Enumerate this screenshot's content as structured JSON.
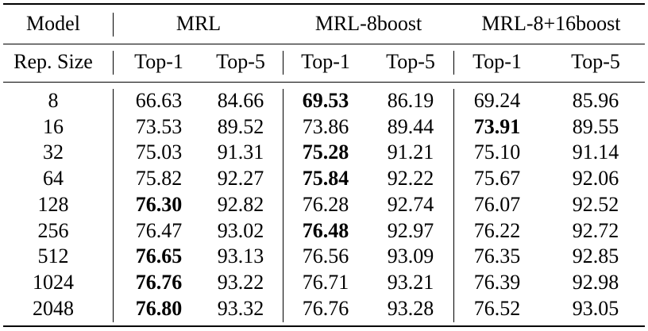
{
  "table": {
    "header": {
      "model_label": "Model",
      "groups": [
        "MRL",
        "MRL-8boost",
        "MRL-8+16boost"
      ],
      "rep_label": "Rep. Size",
      "subcols": [
        "Top-1",
        "Top-5",
        "Top-1",
        "Top-5",
        "Top-1",
        "Top-5"
      ]
    },
    "rows": [
      {
        "size": "8",
        "values": [
          "66.63",
          "84.66",
          "69.53",
          "86.19",
          "69.24",
          "85.96"
        ],
        "bold": [
          false,
          false,
          true,
          false,
          false,
          false
        ]
      },
      {
        "size": "16",
        "values": [
          "73.53",
          "89.52",
          "73.86",
          "89.44",
          "73.91",
          "89.55"
        ],
        "bold": [
          false,
          false,
          false,
          false,
          true,
          false
        ]
      },
      {
        "size": "32",
        "values": [
          "75.03",
          "91.31",
          "75.28",
          "91.21",
          "75.10",
          "91.14"
        ],
        "bold": [
          false,
          false,
          true,
          false,
          false,
          false
        ]
      },
      {
        "size": "64",
        "values": [
          "75.82",
          "92.27",
          "75.84",
          "92.22",
          "75.67",
          "92.06"
        ],
        "bold": [
          false,
          false,
          true,
          false,
          false,
          false
        ]
      },
      {
        "size": "128",
        "values": [
          "76.30",
          "92.82",
          "76.28",
          "92.74",
          "76.07",
          "92.52"
        ],
        "bold": [
          true,
          false,
          false,
          false,
          false,
          false
        ]
      },
      {
        "size": "256",
        "values": [
          "76.47",
          "93.02",
          "76.48",
          "92.97",
          "76.22",
          "92.72"
        ],
        "bold": [
          false,
          false,
          true,
          false,
          false,
          false
        ]
      },
      {
        "size": "512",
        "values": [
          "76.65",
          "93.13",
          "76.56",
          "93.09",
          "76.35",
          "92.85"
        ],
        "bold": [
          true,
          false,
          false,
          false,
          false,
          false
        ]
      },
      {
        "size": "1024",
        "values": [
          "76.76",
          "93.22",
          "76.71",
          "93.21",
          "76.39",
          "92.98"
        ],
        "bold": [
          true,
          false,
          false,
          false,
          false,
          false
        ]
      },
      {
        "size": "2048",
        "values": [
          "76.80",
          "93.32",
          "76.76",
          "93.28",
          "76.52",
          "93.05"
        ],
        "bold": [
          true,
          false,
          false,
          false,
          false,
          false
        ]
      }
    ]
  }
}
